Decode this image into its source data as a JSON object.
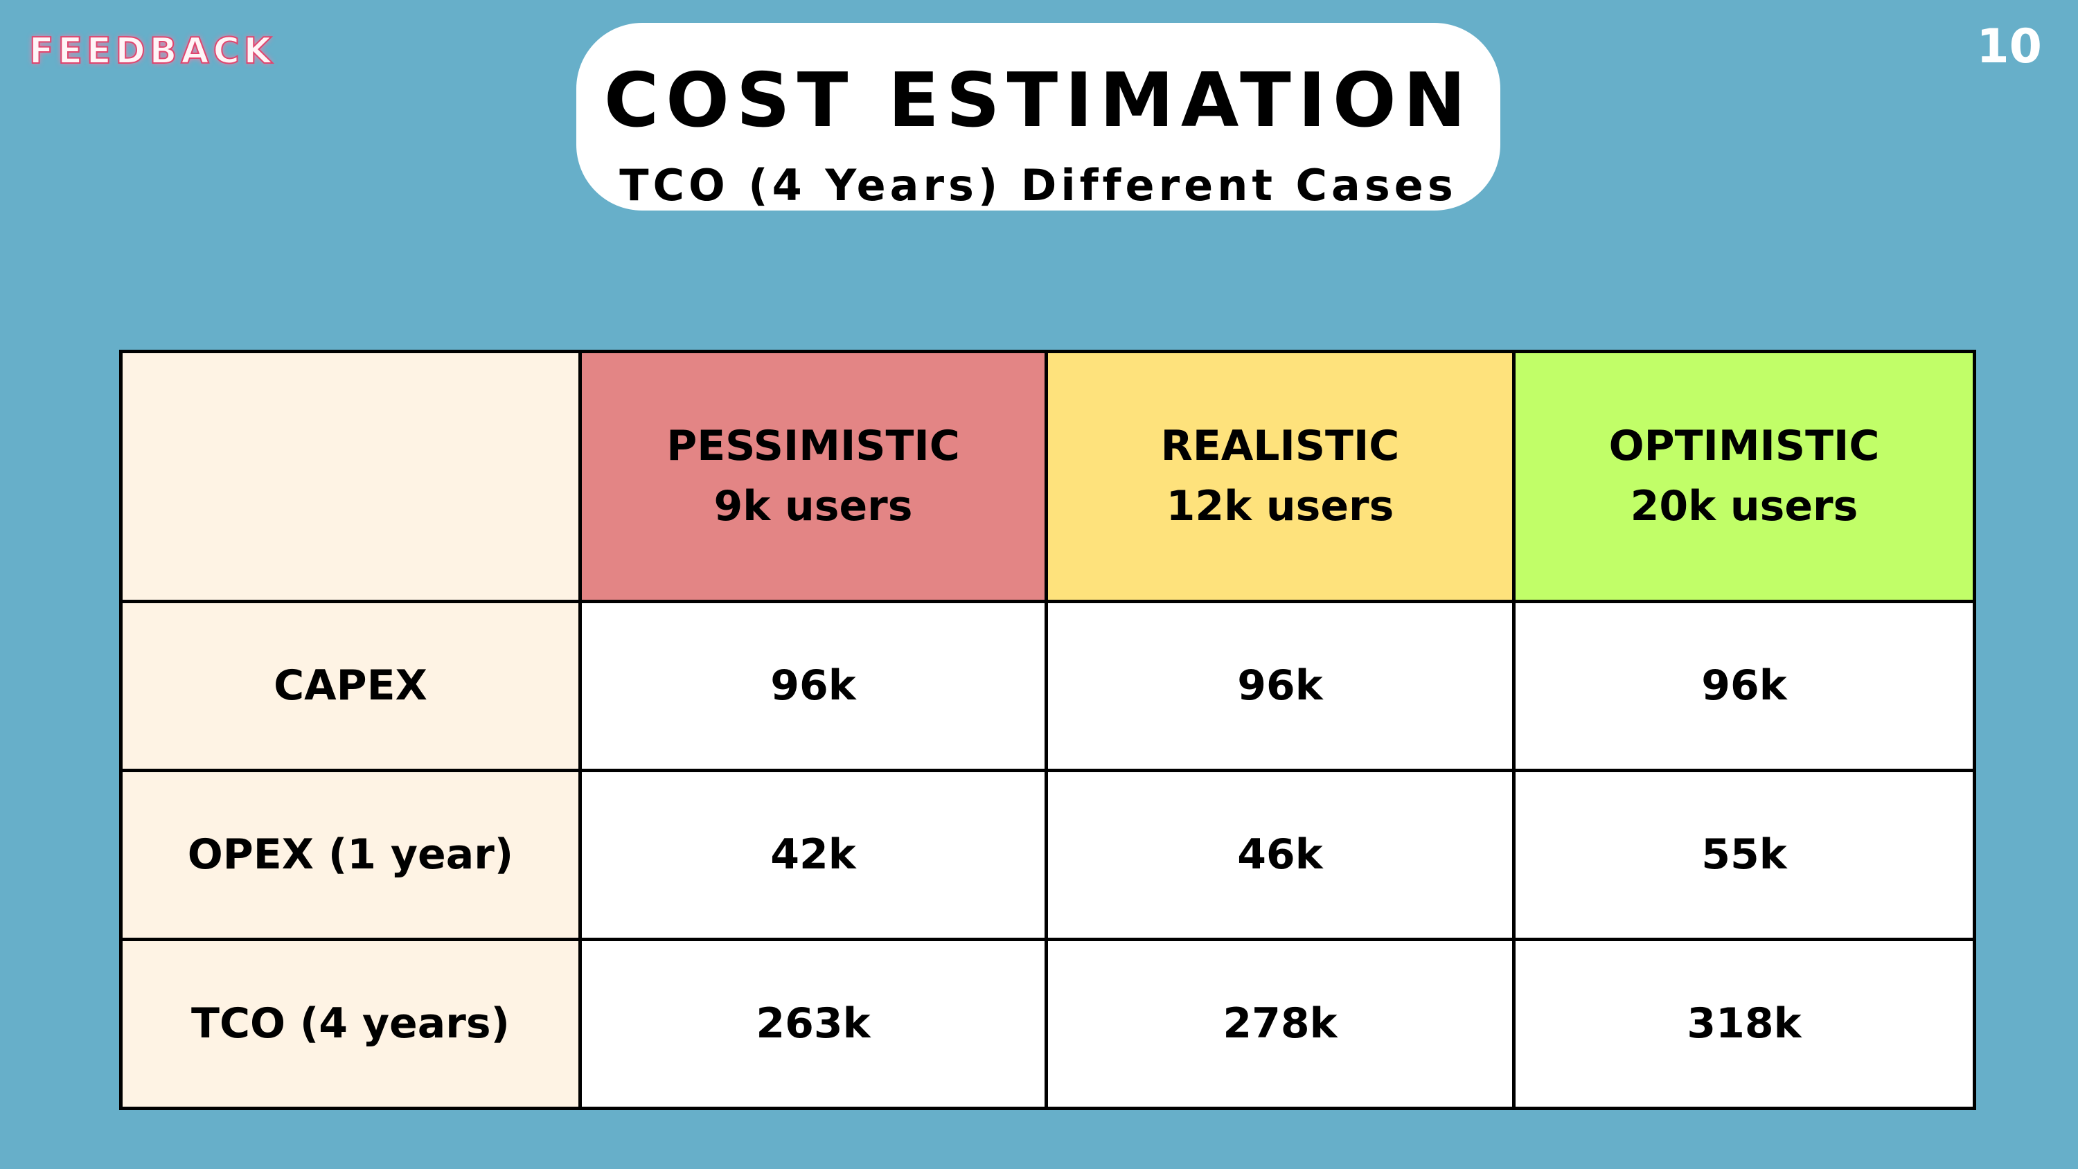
{
  "header": {
    "logo": "FEEDBACK",
    "page_number": "10",
    "title": "COST ESTIMATION",
    "subtitle": "TCO (4 Years) Different Cases"
  },
  "table": {
    "columns": [
      {
        "name": "PESSIMISTIC",
        "users": "9k users"
      },
      {
        "name": "REALISTIC",
        "users": "12k users"
      },
      {
        "name": "OPTIMISTIC",
        "users": "20k users"
      }
    ],
    "rows": [
      {
        "label": "CAPEX",
        "cells": [
          "96k",
          "96k",
          "96k"
        ]
      },
      {
        "label": "OPEX (1 year)",
        "cells": [
          "42k",
          "46k",
          "55k"
        ]
      },
      {
        "label": "TCO (4 years)",
        "cells": [
          "263k",
          "278k",
          "318k"
        ]
      }
    ]
  }
}
